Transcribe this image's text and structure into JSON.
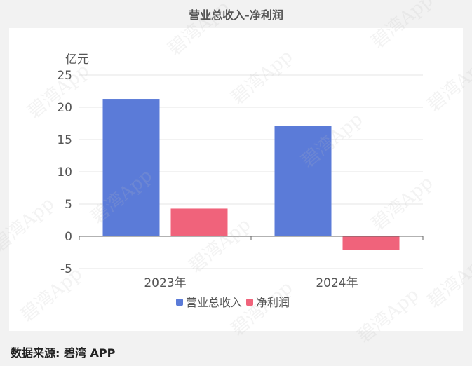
{
  "page": {
    "title": "营业总收入-净利润",
    "source": "数据来源: 碧湾 APP",
    "watermark": "碧湾App"
  },
  "chart_data": {
    "type": "bar",
    "categories": [
      "2023年",
      "2024年"
    ],
    "series": [
      {
        "name": "营业总收入",
        "values": [
          21.3,
          17.1
        ],
        "color": "#5b7bd8"
      },
      {
        "name": "净利润",
        "values": [
          4.3,
          -2.1
        ],
        "color": "#f0637b"
      }
    ],
    "ylabel": "亿元",
    "ylim": [
      -5,
      25
    ],
    "yticks": [
      -5,
      0,
      5,
      10,
      15,
      20,
      25
    ],
    "grid": true,
    "legend": "bottom-center"
  }
}
